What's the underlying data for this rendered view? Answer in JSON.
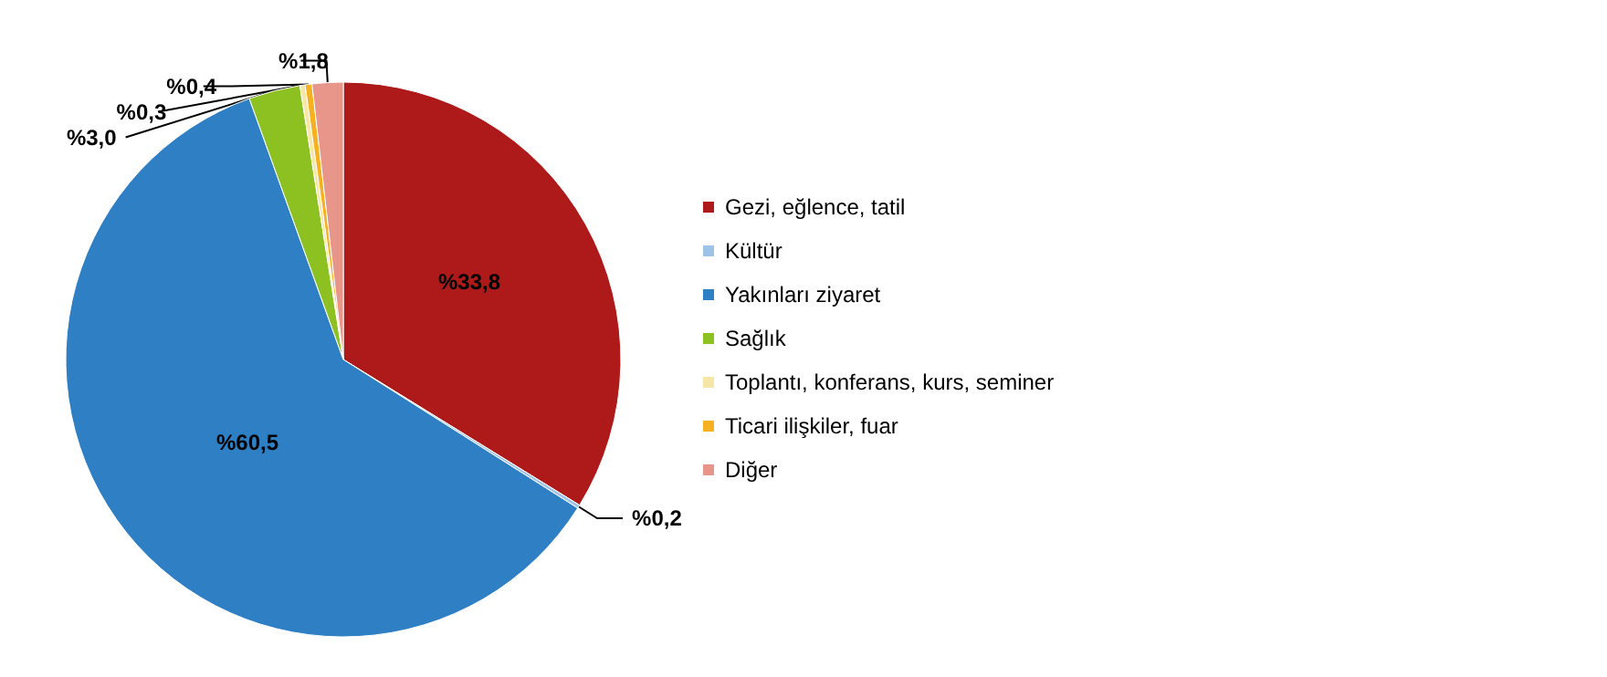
{
  "chart_data": {
    "type": "pie",
    "categories": [
      "Gezi, eğlence, tatil",
      "Kültür",
      "Yakınları ziyaret",
      "Sağlık",
      "Toplantı, konferans, kurs, seminer",
      "Ticari ilişkiler, fuar",
      "Diğer"
    ],
    "values": [
      33.8,
      0.2,
      60.5,
      3.0,
      0.3,
      0.4,
      1.8
    ],
    "value_labels": [
      "%33,8",
      "%0,2",
      "%60,5",
      "%3,0",
      "%0,3",
      "%0,4",
      "%1,8"
    ],
    "colors": [
      "#ae1a1a",
      "#9dc3e6",
      "#2e7fc4",
      "#8dc021",
      "#f7e7a6",
      "#f5b120",
      "#e8958a"
    ],
    "legend": "right"
  }
}
